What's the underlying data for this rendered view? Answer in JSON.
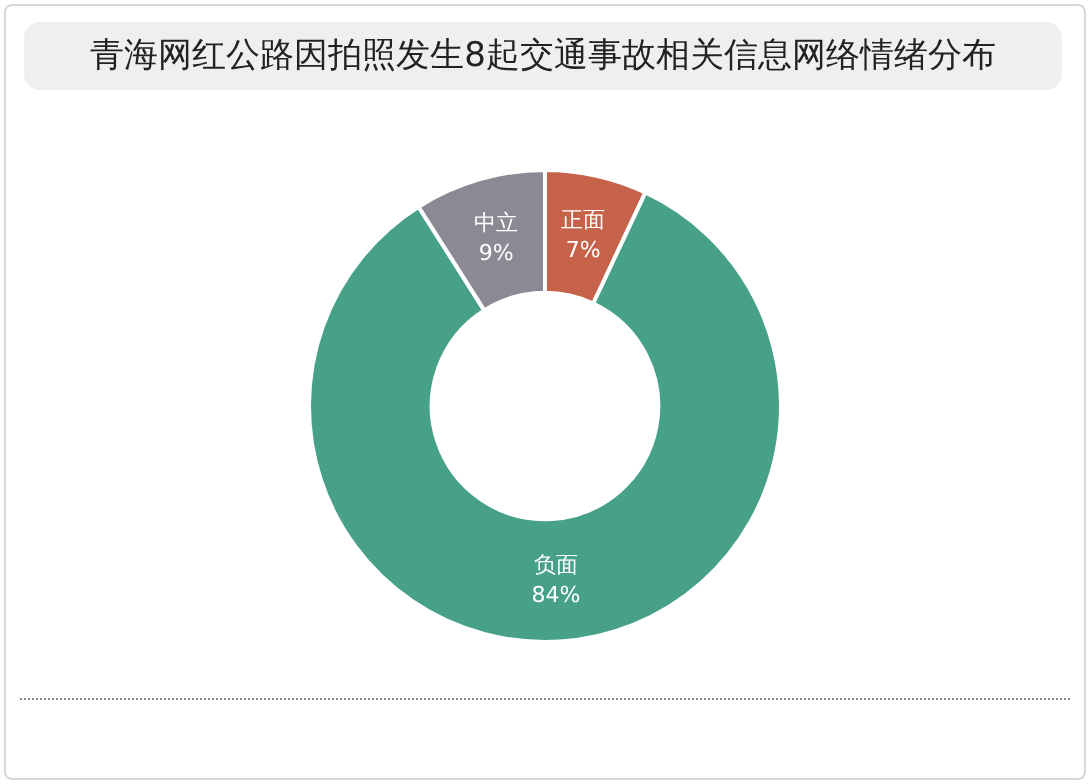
{
  "chart_data": {
    "type": "donut",
    "title": "青海网红公路因拍照发生8起交通事故相关信息网络情绪分布",
    "categories": [
      "正面",
      "负面",
      "中立"
    ],
    "values": [
      7,
      84,
      9
    ],
    "value_labels": [
      "7%",
      "84%",
      "9%"
    ],
    "colors": [
      "#c6624a",
      "#47a088",
      "#8c8894"
    ],
    "legend": false
  }
}
